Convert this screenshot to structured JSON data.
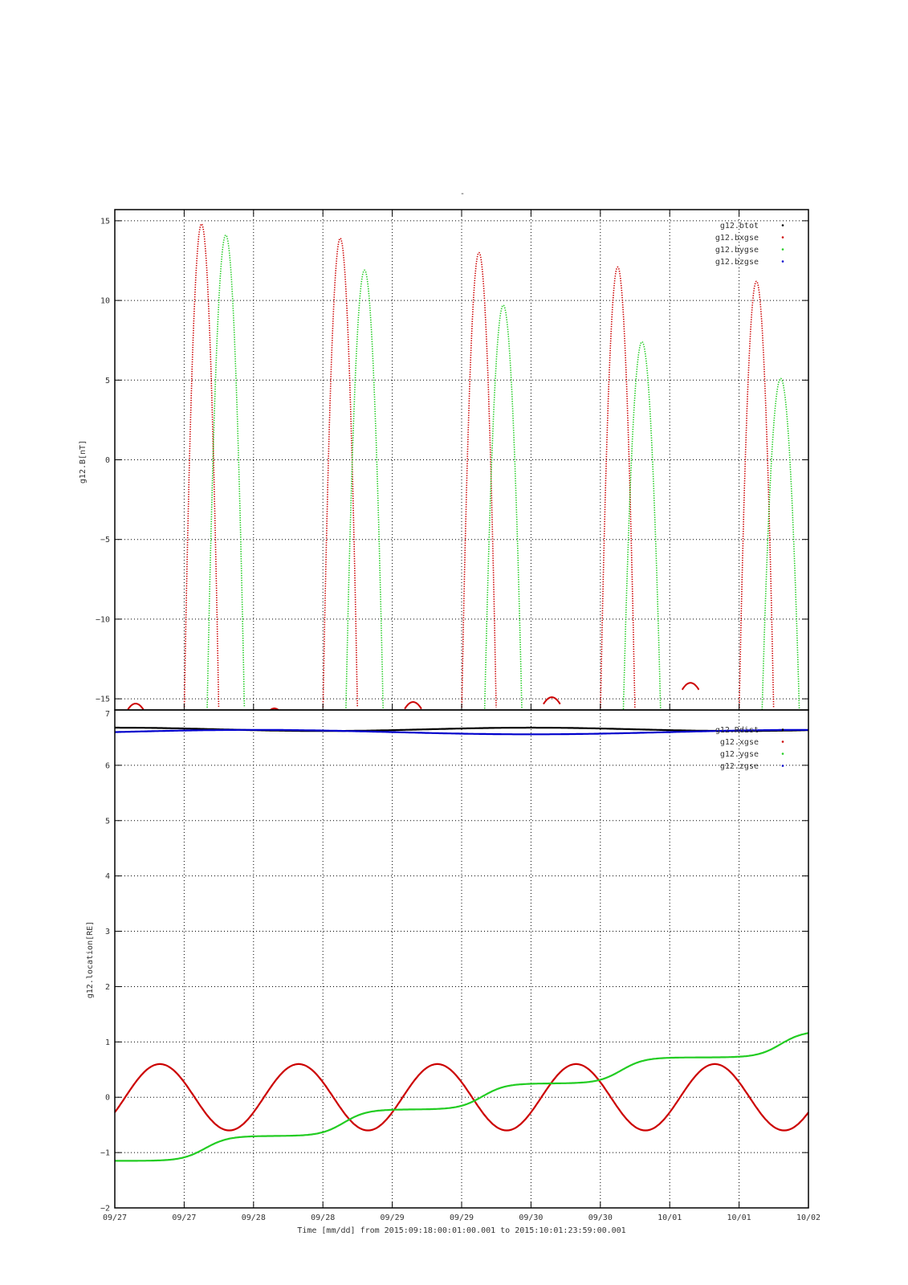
{
  "page": {
    "top_title": "-"
  },
  "footer": {
    "time_label": "Time [mm/dd]  from 2015:09:18:00:01:00.001  to  2015:10:01:23:59:00.001"
  },
  "colors": {
    "red": "#cc0000",
    "green": "#22cc22",
    "blue": "#0000cc",
    "black": "#000000"
  },
  "chart_data": [
    {
      "type": "scatter",
      "ylabel": "g12.B[nT]",
      "xlabel": "",
      "ylim": [
        -15.7,
        15.7
      ],
      "yticks": [
        15,
        10,
        5,
        0,
        -5,
        -10,
        -15
      ],
      "xticks": [
        "09/27",
        "09/27",
        "09/28",
        "09/28",
        "09/29",
        "09/29",
        "09/30",
        "09/30",
        "10/01",
        "10/01",
        "10/02"
      ],
      "grid": true,
      "legend": "top-right",
      "series": [
        {
          "name": "g12.btot",
          "color": "#000000",
          "marker": "dot",
          "values": []
        },
        {
          "name": "g12.bxgse",
          "color": "#cc0000",
          "marker": "dot",
          "peaks": [
            {
              "x": 1.25,
              "y": 14.8
            },
            {
              "x": 3.25,
              "y": 13.9
            },
            {
              "x": 5.25,
              "y": 13.0
            },
            {
              "x": 7.25,
              "y": 12.1
            },
            {
              "x": 9.25,
              "y": 11.2
            }
          ],
          "minor_peaks": [
            {
              "x": 0.3,
              "y": -15.3
            },
            {
              "x": 2.3,
              "y": -15.6
            },
            {
              "x": 4.3,
              "y": -15.2
            },
            {
              "x": 6.3,
              "y": -14.9
            },
            {
              "x": 8.3,
              "y": -14.0
            }
          ]
        },
        {
          "name": "g12.bygse",
          "color": "#22cc22",
          "marker": "dot",
          "peaks": [
            {
              "x": 1.6,
              "y": 14.1
            },
            {
              "x": 3.6,
              "y": 11.9
            },
            {
              "x": 5.6,
              "y": 9.7
            },
            {
              "x": 7.6,
              "y": 7.4
            },
            {
              "x": 9.6,
              "y": 5.1
            }
          ]
        },
        {
          "name": "g12.bzgse",
          "color": "#0000cc",
          "marker": "dot",
          "values": []
        }
      ]
    },
    {
      "type": "line",
      "ylabel": "g12.location[RE]",
      "xlabel": "Time [mm/dd]  from 2015:09:18:00:01:00.001  to  2015:10:01:23:59:00.001",
      "ylim": [
        -2,
        7
      ],
      "yticks": [
        7,
        6,
        5,
        4,
        3,
        2,
        1,
        0,
        -1,
        -2
      ],
      "xticks": [
        "09/27",
        "09/27",
        "09/28",
        "09/28",
        "09/29",
        "09/29",
        "09/30",
        "09/30",
        "10/01",
        "10/01",
        "10/02"
      ],
      "grid": true,
      "legend": "top-right",
      "series": [
        {
          "name": "g12.Rdist",
          "color": "#000000",
          "mean": 6.65,
          "amplitude": 0.03
        },
        {
          "name": "g12.xgse",
          "color": "#cc0000",
          "amplitude": 0.6,
          "period_days": 2,
          "peaks_x": [
            0.65,
            2.65,
            4.65,
            6.65,
            8.65
          ]
        },
        {
          "name": "g12.ygse",
          "color": "#22cc22",
          "steps": [
            {
              "x": 0,
              "y": -1.15
            },
            {
              "x": 1.9,
              "y": -0.7
            },
            {
              "x": 3.9,
              "y": -0.22
            },
            {
              "x": 5.9,
              "y": 0.25
            },
            {
              "x": 7.9,
              "y": 0.72
            },
            {
              "x": 10,
              "y": 1.2
            }
          ]
        },
        {
          "name": "g12.zgse",
          "color": "#0000cc",
          "mean": 6.6,
          "amplitude": 0.04
        }
      ]
    }
  ]
}
